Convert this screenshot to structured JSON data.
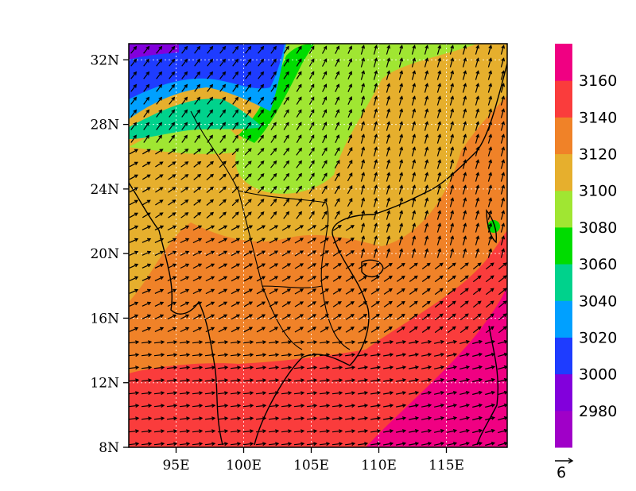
{
  "chart_data": {
    "type": "heatmap",
    "title": "",
    "xlabel": "",
    "ylabel": "",
    "x_ticks": [
      "95E",
      "100E",
      "105E",
      "110E",
      "115E"
    ],
    "x_tick_values": [
      95,
      100,
      105,
      110,
      115
    ],
    "y_ticks": [
      "8N",
      "12N",
      "16N",
      "20N",
      "24N",
      "28N",
      "32N"
    ],
    "y_tick_values": [
      8,
      12,
      16,
      20,
      24,
      28,
      32
    ],
    "xlim": [
      91.5,
      119.5
    ],
    "ylim": [
      8,
      33
    ],
    "grid": true,
    "colorbar": {
      "levels": [
        2980,
        3000,
        3020,
        3040,
        3060,
        3080,
        3100,
        3120,
        3140,
        3160
      ],
      "labels": [
        "2980",
        "3000",
        "3020",
        "3040",
        "3060",
        "3080",
        "3100",
        "3120",
        "3140",
        "3160"
      ],
      "colors": [
        "#a000c8",
        "#8200dc",
        "#1e3cff",
        "#00a0ff",
        "#00d28c",
        "#00dc00",
        "#a0e632",
        "#e6af2d",
        "#f08228",
        "#fa3c3c",
        "#f00082"
      ],
      "placement": "right"
    },
    "vector_reference": {
      "label": "6"
    },
    "field_regions": [
      {
        "level_min": 3140,
        "level_max": 3160,
        "description": "south: latitude below 12N"
      },
      {
        "level_min": 3160,
        "level_max": 3180,
        "description": "southeast corner"
      },
      {
        "level_min": 3120,
        "level_max": 3140,
        "description": "16N-20N band"
      },
      {
        "level_min": 3100,
        "level_max": 3120,
        "description": "20N-28N band"
      },
      {
        "level_min": 3080,
        "level_max": 3100,
        "description": "north around 24-30N, 98-112E"
      },
      {
        "level_min": 3000,
        "level_max": 3040,
        "description": "Tibetan plateau, northwest corner"
      }
    ]
  }
}
